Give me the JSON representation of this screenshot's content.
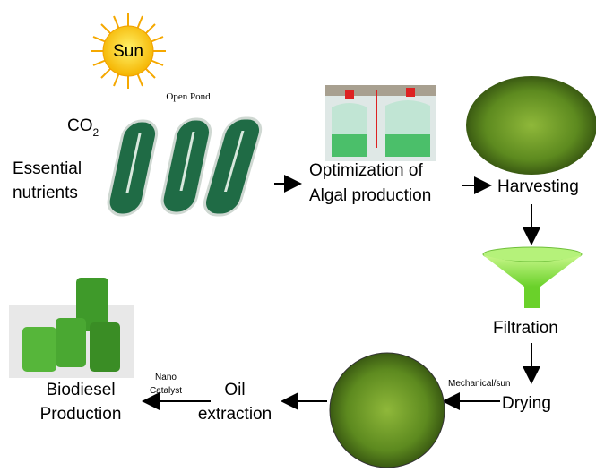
{
  "sun": "Sun",
  "open_pond": "Open Pond",
  "co2": {
    "base": "CO",
    "subscript": "2"
  },
  "nutrients": [
    "Essential",
    "nutrients"
  ],
  "optimization": [
    "Optimization of",
    "Algal production"
  ],
  "harvesting": "Harvesting",
  "filtration": "Filtration",
  "drying_method": "Mechanical/sun",
  "drying": "Drying",
  "oil_extraction": [
    "Oil",
    "extraction"
  ],
  "catalyst": [
    "Nano",
    "Catalyst"
  ],
  "biodiesel": [
    "Biodiesel",
    "Production"
  ]
}
